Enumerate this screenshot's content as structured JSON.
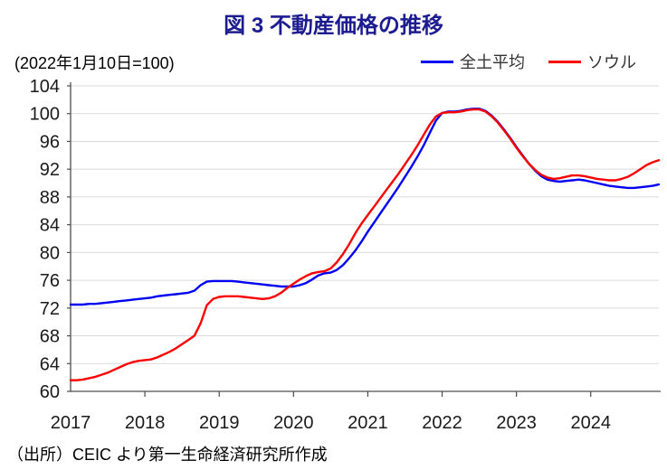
{
  "title": "図 3  不動産価格の推移",
  "subtitle": "(2022年1月10日=100)",
  "source": "（出所）CEIC より第一生命経済研究所作成",
  "legend": [
    {
      "label": "全土平均",
      "color": "#0000f2"
    },
    {
      "label": "ソウル",
      "color": "#fb0000"
    }
  ],
  "colors": {
    "title": "#1c1c90",
    "axis": "#4d4d4d",
    "grid": "#d9d9d9",
    "tick_label": "#1a1a1a"
  },
  "chart_data": {
    "type": "line",
    "title": "図 3 不動産価格の推移",
    "note": "(2022年1月10日=100)",
    "x_start_year": 2017,
    "points_per_year": 12,
    "x_labels": [
      "2017",
      "2018",
      "2019",
      "2020",
      "2021",
      "2022",
      "2023",
      "2024"
    ],
    "x_tick_years": [
      2018,
      2019,
      2020,
      2021,
      2022,
      2023,
      2024
    ],
    "ylim": [
      60,
      104
    ],
    "ytick_step": 4,
    "grid": true,
    "legend_position": "top-right",
    "series": [
      {
        "name": "全土平均",
        "color": "#0000f2",
        "values": [
          72.5,
          72.5,
          72.5,
          72.6,
          72.6,
          72.7,
          72.8,
          72.9,
          73.0,
          73.1,
          73.2,
          73.3,
          73.4,
          73.5,
          73.7,
          73.8,
          73.9,
          74.0,
          74.1,
          74.2,
          74.5,
          75.3,
          75.8,
          75.9,
          75.9,
          75.9,
          75.9,
          75.8,
          75.7,
          75.6,
          75.5,
          75.4,
          75.3,
          75.2,
          75.1,
          75.1,
          75.1,
          75.3,
          75.6,
          76.1,
          76.7,
          77.0,
          77.1,
          77.5,
          78.2,
          79.2,
          80.3,
          81.6,
          83.0,
          84.3,
          85.6,
          86.9,
          88.2,
          89.5,
          90.9,
          92.3,
          93.8,
          95.4,
          97.2,
          99.0,
          100.1,
          100.3,
          100.3,
          100.4,
          100.6,
          100.7,
          100.7,
          100.4,
          99.7,
          98.8,
          97.7,
          96.5,
          95.2,
          94.0,
          92.8,
          91.8,
          91.0,
          90.5,
          90.3,
          90.2,
          90.3,
          90.4,
          90.5,
          90.4,
          90.2,
          90.0,
          89.8,
          89.6,
          89.5,
          89.4,
          89.3,
          89.3,
          89.4,
          89.5,
          89.6,
          89.8
        ]
      },
      {
        "name": "ソウル",
        "color": "#fb0000",
        "values": [
          61.6,
          61.6,
          61.7,
          61.9,
          62.1,
          62.4,
          62.7,
          63.1,
          63.5,
          63.9,
          64.2,
          64.4,
          64.5,
          64.6,
          64.9,
          65.3,
          65.7,
          66.2,
          66.8,
          67.4,
          68.0,
          69.8,
          72.4,
          73.3,
          73.6,
          73.7,
          73.7,
          73.7,
          73.6,
          73.5,
          73.4,
          73.3,
          73.4,
          73.7,
          74.2,
          74.9,
          75.5,
          76.1,
          76.6,
          77.0,
          77.2,
          77.3,
          77.7,
          78.6,
          79.8,
          81.2,
          82.8,
          84.2,
          85.4,
          86.6,
          87.8,
          89.0,
          90.2,
          91.4,
          92.7,
          94.0,
          95.4,
          96.9,
          98.4,
          99.6,
          100.1,
          100.2,
          100.2,
          100.3,
          100.5,
          100.6,
          100.6,
          100.3,
          99.6,
          98.7,
          97.6,
          96.4,
          95.1,
          93.9,
          92.8,
          91.9,
          91.2,
          90.8,
          90.6,
          90.7,
          90.9,
          91.1,
          91.1,
          91.0,
          90.8,
          90.6,
          90.5,
          90.4,
          90.4,
          90.6,
          90.9,
          91.4,
          92.0,
          92.6,
          93.0,
          93.3
        ]
      }
    ]
  }
}
